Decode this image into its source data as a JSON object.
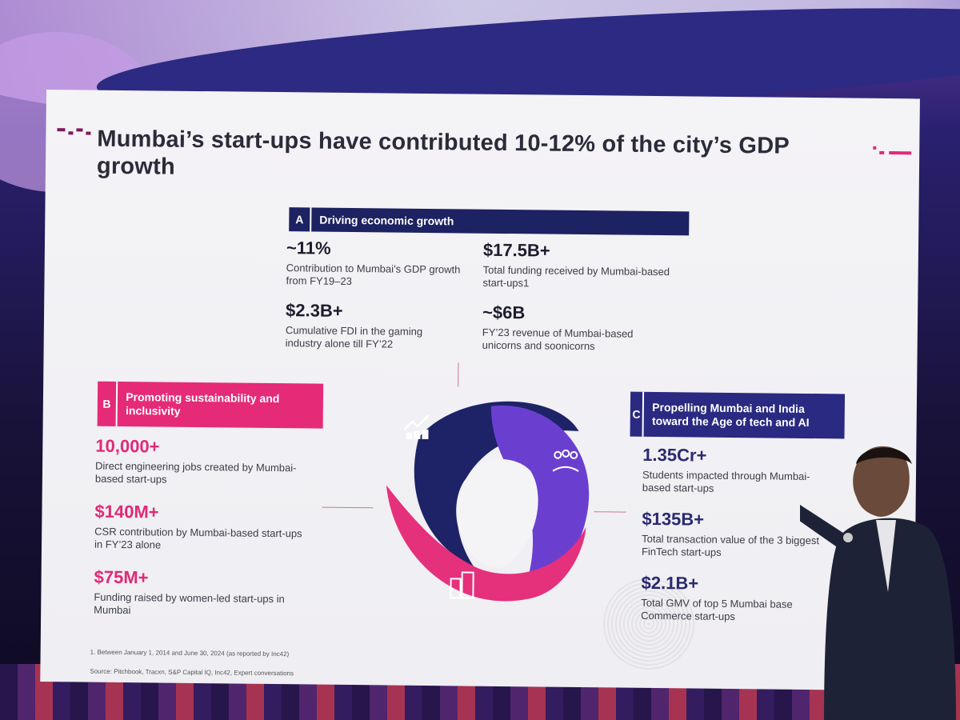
{
  "slide": {
    "title": "Mumbai’s start-ups have contributed 10-12% of the city’s GDP growth"
  },
  "section_a": {
    "letter": "A",
    "label": "Driving economic growth",
    "stats": [
      {
        "value": "~11%",
        "desc_bold_suffix": "",
        "desc": "Contribution to Mumbai’s GDP growth from FY19–23"
      },
      {
        "value": "$17.5B+",
        "desc": "Total funding received by Mumbai-based start-ups1"
      },
      {
        "value": "$2.3B+",
        "desc": "Cumulative FDI in the gaming industry alone till FY’22"
      },
      {
        "value": "~$6B",
        "desc": "FY’23 revenue of Mumbai-based unicorns and soonicorns"
      }
    ]
  },
  "section_b": {
    "letter": "B",
    "label": "Promoting sustainability and inclusivity",
    "stats": [
      {
        "value": "10,000+",
        "desc": "Direct engineering jobs created by Mumbai-based start-ups"
      },
      {
        "value": "$140M+",
        "desc": "CSR contribution by Mumbai-based start-ups in FY’23 alone"
      },
      {
        "value": "$75M+",
        "desc": "Funding raised by women-led start-ups in Mumbai"
      }
    ]
  },
  "section_c": {
    "letter": "C",
    "label": "Propelling Mumbai and India toward the Age of tech and AI",
    "stats": [
      {
        "value": "1.35Cr+",
        "desc": "Students impacted through Mumbai-based start-ups"
      },
      {
        "value": "$135B+",
        "desc": "Total transaction value of the 3 biggest FinTech start-ups"
      },
      {
        "value": "$2.1B+",
        "desc": "Total GMV of top 5 Mumbai base Commerce start-ups"
      }
    ]
  },
  "footnotes": {
    "note1": "1.     Between January 1, 2014 and June 30, 2024 (as reported by Inc42)",
    "source": "Source: Pitchbook, Tracxn, S&P Capital IQ, Inc42, Expert conversations"
  },
  "icons": [
    "growth-chart-icon",
    "people-icon",
    "buildings-icon"
  ],
  "colors": {
    "navy": "#1d2262",
    "pink": "#e52a78",
    "purple": "#2a2a82"
  }
}
